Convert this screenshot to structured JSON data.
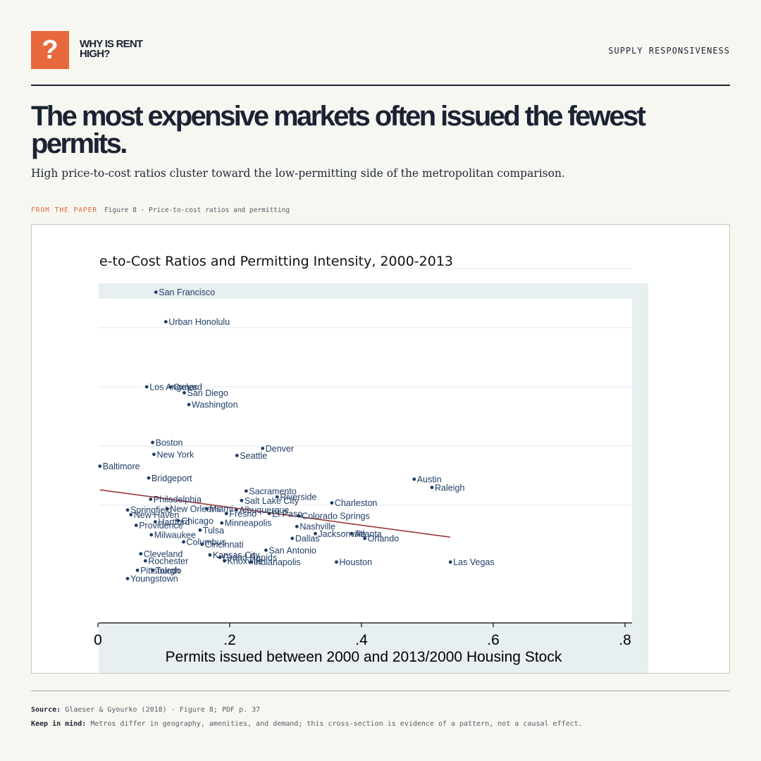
{
  "brand": {
    "logo_glyph": "?",
    "name": "WHY IS RENT HIGH?"
  },
  "header": {
    "section": "SUPPLY RESPONSIVENESS"
  },
  "headline": "The most expensive markets often issued the fewest permits.",
  "subhead": "High price-to-cost ratios cluster toward the low-permitting side of the metropolitan comparison.",
  "figure_label": {
    "prefix": "FROM THE PAPER",
    "caption": "Figure 8 · Price-to-cost ratios and permitting"
  },
  "footer": {
    "source_label": "Source:",
    "source_text": "Glaeser & Gyourko (2018) · Figure 8; PDF p. 37",
    "note_label": "Keep in mind:",
    "note_text": "Metros differ in geography, amenities, and demand; this cross-section is evidence of a pattern, not a causal effect."
  },
  "colors": {
    "accent": "#e8693e",
    "ink": "#1b2333",
    "points": "#1f3d66",
    "fit_line": "#9b3a3a",
    "plot_panel": "#e8eff1"
  },
  "chart_data": {
    "type": "scatter",
    "title": "e-to-Cost Ratios and Permitting Intensity, 2000-2013",
    "xlabel": "Permits issued between 2000 and 2013/2000 Housing Stock",
    "ylabel": "",
    "xlim": [
      0,
      0.8
    ],
    "ylim": [
      0.6,
      3.0
    ],
    "x_ticks": [
      0,
      0.2,
      0.4,
      0.6,
      0.8
    ],
    "x_tick_labels": [
      "0",
      ".2",
      ".4",
      ".6",
      ".8"
    ],
    "y_gridlines": [
      1.0,
      1.5,
      2.0,
      2.5,
      3.0
    ],
    "grid": true,
    "points": [
      {
        "label": "San Francisco",
        "x": 0.088,
        "y": 2.8
      },
      {
        "label": "Urban Honolulu",
        "x": 0.103,
        "y": 2.55
      },
      {
        "label": "Los Angeles",
        "x": 0.074,
        "y": 2.0
      },
      {
        "label": "Oxnard",
        "x": 0.11,
        "y": 2.0
      },
      {
        "label": "San Diego",
        "x": 0.131,
        "y": 1.95
      },
      {
        "label": "Washington",
        "x": 0.138,
        "y": 1.85
      },
      {
        "label": "Boston",
        "x": 0.083,
        "y": 1.53
      },
      {
        "label": "Denver",
        "x": 0.25,
        "y": 1.48
      },
      {
        "label": "New York",
        "x": 0.085,
        "y": 1.43
      },
      {
        "label": "Seattle",
        "x": 0.211,
        "y": 1.42
      },
      {
        "label": "Baltimore",
        "x": 0.003,
        "y": 1.33
      },
      {
        "label": "Bridgeport",
        "x": 0.077,
        "y": 1.23
      },
      {
        "label": "Austin",
        "x": 0.48,
        "y": 1.22
      },
      {
        "label": "Raleigh",
        "x": 0.507,
        "y": 1.15
      },
      {
        "label": "Sacramento",
        "x": 0.225,
        "y": 1.12
      },
      {
        "label": "Riverside",
        "x": 0.272,
        "y": 1.07
      },
      {
        "label": "Salt Lake City",
        "x": 0.218,
        "y": 1.04
      },
      {
        "label": "Philadelphia",
        "x": 0.08,
        "y": 1.05
      },
      {
        "label": "Charleston",
        "x": 0.355,
        "y": 1.02
      },
      {
        "label": "Orlando",
        "x": 0.405,
        "y": 0.72
      },
      {
        "label": "Springfield",
        "x": 0.045,
        "y": 0.96
      },
      {
        "label": "New Haven",
        "x": 0.05,
        "y": 0.92
      },
      {
        "label": "New Orleans",
        "x": 0.105,
        "y": 0.97
      },
      {
        "label": "Miami",
        "x": 0.165,
        "y": 0.97
      },
      {
        "label": "Albuquerque",
        "x": 0.21,
        "y": 0.96
      },
      {
        "label": "Fresno",
        "x": 0.195,
        "y": 0.93
      },
      {
        "label": "El Paso",
        "x": 0.26,
        "y": 0.93
      },
      {
        "label": "Colorado Springs",
        "x": 0.305,
        "y": 0.91
      },
      {
        "label": "Chicago",
        "x": 0.122,
        "y": 0.87
      },
      {
        "label": "Hartford",
        "x": 0.087,
        "y": 0.86
      },
      {
        "label": "Providence",
        "x": 0.058,
        "y": 0.83
      },
      {
        "label": "Minneapolis",
        "x": 0.188,
        "y": 0.85
      },
      {
        "label": "Nashville",
        "x": 0.302,
        "y": 0.82
      },
      {
        "label": "Milwaukee",
        "x": 0.081,
        "y": 0.75
      },
      {
        "label": "Tulsa",
        "x": 0.155,
        "y": 0.79
      },
      {
        "label": "Jacksonville",
        "x": 0.33,
        "y": 0.76
      },
      {
        "label": "Atlanta",
        "x": 0.385,
        "y": 0.76
      },
      {
        "label": "Dallas",
        "x": 0.295,
        "y": 0.72
      },
      {
        "label": "Columbus",
        "x": 0.13,
        "y": 0.69
      },
      {
        "label": "Cincinnati",
        "x": 0.158,
        "y": 0.67
      },
      {
        "label": "San Antonio",
        "x": 0.255,
        "y": 0.62
      },
      {
        "label": "Cleveland",
        "x": 0.065,
        "y": 0.59
      },
      {
        "label": "Kansas City",
        "x": 0.17,
        "y": 0.58
      },
      {
        "label": "Grand Rapids",
        "x": 0.185,
        "y": 0.56
      },
      {
        "label": "Rochester",
        "x": 0.072,
        "y": 0.53
      },
      {
        "label": "Knoxville",
        "x": 0.192,
        "y": 0.53
      },
      {
        "label": "Indianapolis",
        "x": 0.232,
        "y": 0.52
      },
      {
        "label": "Houston",
        "x": 0.362,
        "y": 0.52
      },
      {
        "label": "Las Vegas",
        "x": 0.535,
        "y": 0.52
      },
      {
        "label": "Pittsburgh",
        "x": 0.06,
        "y": 0.45
      },
      {
        "label": "Toledo",
        "x": 0.083,
        "y": 0.45
      },
      {
        "label": "Youngstown",
        "x": 0.045,
        "y": 0.38
      }
    ],
    "fit_line": {
      "x": [
        0.003,
        0.535
      ],
      "y": [
        1.13,
        0.73
      ]
    }
  }
}
